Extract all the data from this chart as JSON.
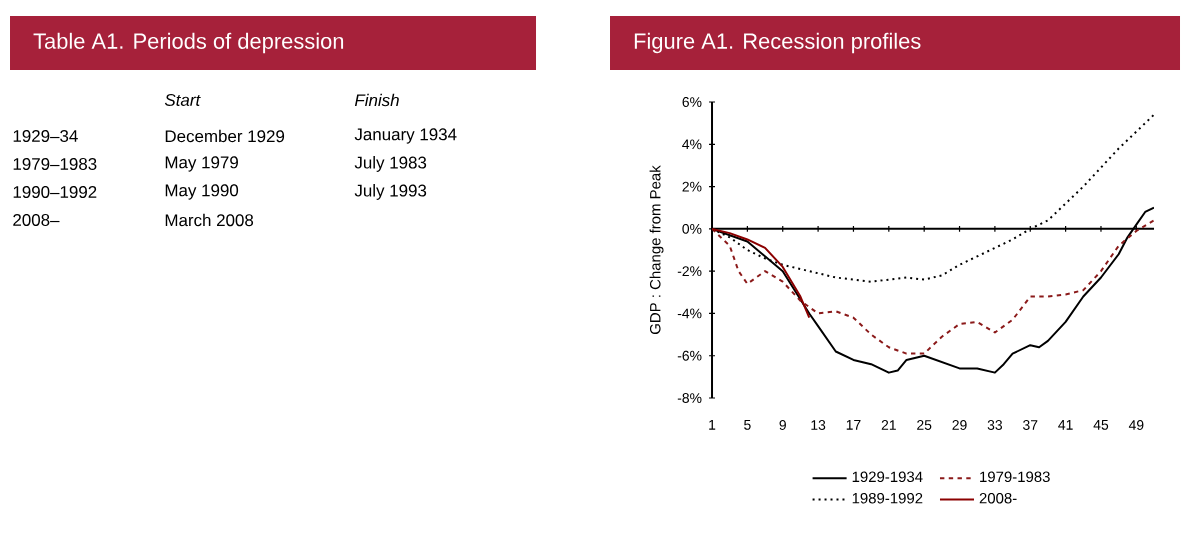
{
  "chart_data": [
    {
      "type": "other",
      "title": "Table A1. Periods of depression",
      "annotations": [
        "Start",
        "Finish",
        "1929–34",
        "December 1929",
        "January 1934",
        "1979–1983",
        "May 1979",
        "July 1983",
        "1990–1992",
        "May 1990",
        "July 1993",
        "2008–",
        "March 2008"
      ]
    },
    {
      "type": "line",
      "title": "Figure A1. Recession profiles",
      "ylabel": "GDP : Change from Peak",
      "xlim": [
        1,
        51
      ],
      "xticks": [
        1,
        5,
        9,
        13,
        17,
        21,
        25,
        29,
        33,
        37,
        41,
        45,
        49
      ],
      "ylim": [
        -8,
        6
      ],
      "yticks": [
        {
          "value": -8,
          "label": "-8%"
        },
        {
          "value": -6,
          "label": "-6%"
        },
        {
          "value": -4,
          "label": "-4%"
        },
        {
          "value": -2,
          "label": "-2%"
        },
        {
          "value": 0,
          "label": "0%"
        },
        {
          "value": 2,
          "label": "2%"
        },
        {
          "value": 4,
          "label": "4%"
        },
        {
          "value": 6,
          "label": "6%"
        }
      ],
      "legend": "bottom",
      "marker": "none",
      "series": [
        {
          "name": "1929-1934",
          "color": "#000000",
          "line_style": "solid",
          "x": [
            1,
            5,
            9,
            12,
            13,
            15,
            17,
            19,
            21,
            22,
            23,
            25,
            27,
            29,
            31,
            33,
            34,
            35,
            37,
            38,
            39,
            41,
            43,
            45,
            47,
            48,
            49,
            50,
            51
          ],
          "values": [
            0,
            -0.6,
            -2,
            -4,
            -4.6,
            -5.8,
            -6.2,
            -6.4,
            -6.8,
            -6.7,
            -6.2,
            -6,
            -6.3,
            -6.6,
            -6.6,
            -6.8,
            -6.4,
            -5.9,
            -5.5,
            -5.6,
            -5.3,
            -4.4,
            -3.2,
            -2.3,
            -1.2,
            -0.4,
            0.2,
            0.8,
            1
          ]
        },
        {
          "name": "1979-1983",
          "color": "#8b1a1a",
          "line_style": "dashed",
          "x": [
            1,
            3,
            4,
            5,
            6,
            7,
            9,
            11,
            13,
            15,
            17,
            19,
            21,
            23,
            25,
            27,
            29,
            31,
            33,
            35,
            37,
            39,
            41,
            43,
            45,
            47,
            49,
            51
          ],
          "values": [
            0,
            -0.8,
            -2,
            -2.6,
            -2.3,
            -2,
            -2.5,
            -3.4,
            -4,
            -3.9,
            -4.2,
            -5,
            -5.6,
            -5.9,
            -5.9,
            -5.1,
            -4.5,
            -4.4,
            -4.9,
            -4.3,
            -3.2,
            -3.2,
            -3.1,
            -2.9,
            -2,
            -0.8,
            -0.1,
            0.4
          ]
        },
        {
          "name": "1989-1992",
          "color": "#000000",
          "line_style": "dotted",
          "x": [
            1,
            3,
            5,
            7,
            9,
            11,
            13,
            15,
            17,
            19,
            21,
            23,
            25,
            27,
            29,
            31,
            33,
            35,
            37,
            39,
            41,
            43,
            45,
            47,
            49,
            51
          ],
          "values": [
            0,
            -0.4,
            -1,
            -1.4,
            -1.7,
            -1.9,
            -2.1,
            -2.3,
            -2.4,
            -2.5,
            -2.4,
            -2.3,
            -2.4,
            -2.2,
            -1.7,
            -1.3,
            -0.9,
            -0.5,
            0,
            0.4,
            1.2,
            2,
            2.9,
            3.8,
            4.6,
            5.4
          ]
        },
        {
          "name": "2008-",
          "color": "#8b0000",
          "line_style": "solid",
          "x": [
            1,
            3,
            5,
            7,
            9,
            11,
            12
          ],
          "values": [
            0,
            -0.2,
            -0.5,
            -0.9,
            -1.8,
            -3.2,
            -4.2
          ]
        }
      ]
    }
  ]
}
